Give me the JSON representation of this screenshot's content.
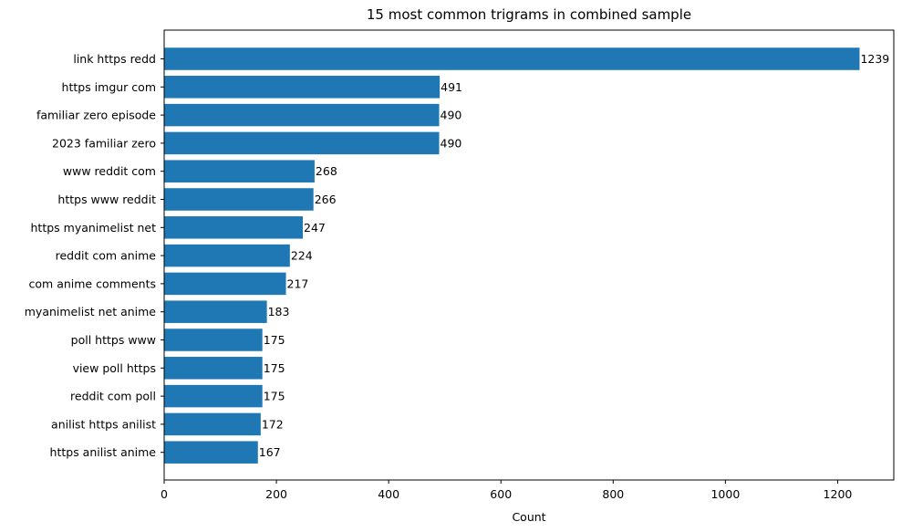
{
  "chart_data": {
    "type": "bar",
    "orientation": "horizontal",
    "title": "15 most common trigrams in combined sample",
    "xlabel": "Count",
    "ylabel": "",
    "xlim": [
      0,
      1300
    ],
    "xticks": [
      0,
      200,
      400,
      600,
      800,
      1000,
      1200
    ],
    "categories": [
      "link https redd",
      "https imgur com",
      "familiar zero episode",
      "2023 familiar zero",
      "www reddit com",
      "https www reddit",
      "https myanimelist net",
      "reddit com anime",
      "com anime comments",
      "myanimelist net anime",
      "poll https www",
      "view poll https",
      "reddit com poll",
      "anilist https anilist",
      "https anilist anime"
    ],
    "values": [
      1239,
      491,
      490,
      490,
      268,
      266,
      247,
      224,
      217,
      183,
      175,
      175,
      175,
      172,
      167
    ],
    "bar_color": "#1f77b4",
    "grid": false,
    "legend": "none",
    "data_labels": true
  }
}
